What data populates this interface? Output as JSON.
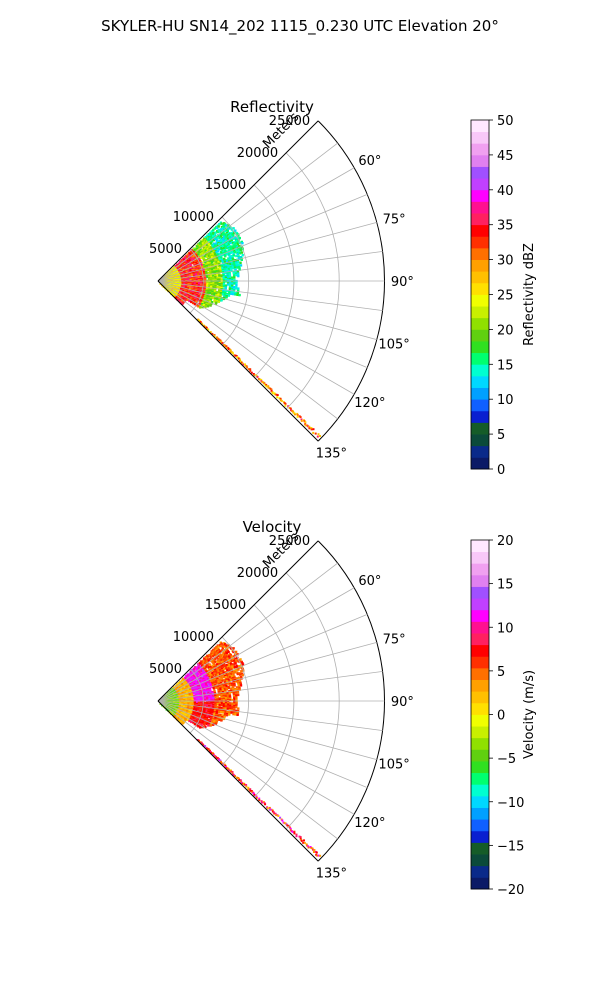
{
  "figure_title": "SKYLER-HU  SN14_202  1115_0.230 UTC Elevation 20°",
  "chart_data": [
    {
      "type": "polar-sector",
      "title": "Reflectivity",
      "radial_label": "Meters",
      "theta_range_deg": [
        45,
        135
      ],
      "r_max": 25000,
      "radial_ticks": [
        "5000",
        "10000",
        "15000",
        "20000",
        "25000"
      ],
      "radial_tick_values": [
        5000,
        10000,
        15000,
        20000,
        25000
      ],
      "angle_ticks": [
        "60°",
        "75°",
        "90°",
        "105°",
        "120°",
        "135°"
      ],
      "angle_tick_values": [
        60,
        75,
        90,
        105,
        120,
        135
      ],
      "grid": true,
      "colorbar": {
        "label": "Reflectivity dBZ",
        "min": 0,
        "max": 50,
        "ticks": [
          "0",
          "5",
          "10",
          "15",
          "20",
          "25",
          "30",
          "35",
          "40",
          "45",
          "50"
        ],
        "tick_values": [
          0,
          5,
          10,
          15,
          20,
          25,
          30,
          35,
          40,
          45,
          50
        ],
        "colors": [
          "#0b1a66",
          "#0a2a8a",
          "#0b4a3a",
          "#155c28",
          "#0a1fd0",
          "#1060ff",
          "#00a0ff",
          "#00d8ff",
          "#00ffd0",
          "#00ff70",
          "#30e020",
          "#60d010",
          "#90e000",
          "#c8f000",
          "#f0ff00",
          "#ffe000",
          "#ffc000",
          "#ffa000",
          "#ff7000",
          "#ff3000",
          "#ff0000",
          "#ff2060",
          "#ff1090",
          "#ff00ff",
          "#c040ff",
          "#a050ff",
          "#e080f0",
          "#f0a0f0",
          "#f8c8f8",
          "#ffe8ff"
        ]
      }
    },
    {
      "type": "polar-sector",
      "title": "Velocity",
      "radial_label": "Meters",
      "theta_range_deg": [
        45,
        135
      ],
      "r_max": 25000,
      "radial_ticks": [
        "5000",
        "10000",
        "15000",
        "20000",
        "25000"
      ],
      "radial_tick_values": [
        5000,
        10000,
        15000,
        20000,
        25000
      ],
      "angle_ticks": [
        "60°",
        "75°",
        "90°",
        "105°",
        "120°",
        "135°"
      ],
      "angle_tick_values": [
        60,
        75,
        90,
        105,
        120,
        135
      ],
      "grid": true,
      "colorbar": {
        "label": "Velocity (m/s)",
        "min": -20,
        "max": 20,
        "ticks": [
          "−20",
          "−15",
          "−10",
          "−5",
          "0",
          "5",
          "10",
          "15",
          "20"
        ],
        "tick_values": [
          -20,
          -15,
          -10,
          -5,
          0,
          5,
          10,
          15,
          20
        ],
        "colors": [
          "#0b1a66",
          "#0a2a8a",
          "#0b4a3a",
          "#155c28",
          "#0a1fd0",
          "#1060ff",
          "#00a0ff",
          "#00d8ff",
          "#00ffd0",
          "#00ff70",
          "#30e020",
          "#60d010",
          "#90e000",
          "#c8f000",
          "#f0ff00",
          "#ffe000",
          "#ffc000",
          "#ffa000",
          "#ff7000",
          "#ff3000",
          "#ff0000",
          "#ff2060",
          "#ff1090",
          "#ff00ff",
          "#c040ff",
          "#a050ff",
          "#e080f0",
          "#f0a0f0",
          "#f8c8f8",
          "#ffe8ff"
        ]
      }
    }
  ]
}
